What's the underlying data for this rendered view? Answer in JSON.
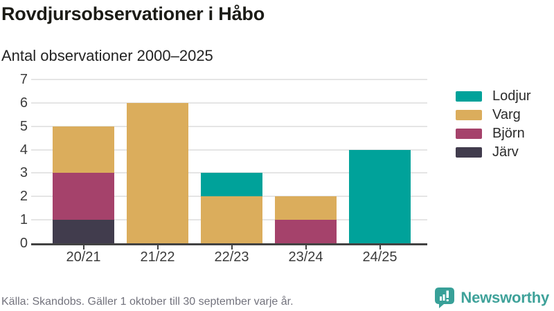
{
  "footer": {
    "source": "Källa: Skandobs. Gäller 1 oktober till 30 september varje år.",
    "brand": "Newsworthy"
  },
  "colors": {
    "lodjur_teal": "#00A29A",
    "varg_gold": "#DBAD5C",
    "bjorn_maroon": "#A5426B",
    "jarv_dark": "#413C4D",
    "brand_teal": "#3FA29A",
    "axis": "#424242",
    "gridline": "#E5E5E5"
  },
  "chart_data": {
    "type": "bar",
    "stacked": true,
    "title": "Rovdjursobservationer i Håbo",
    "subtitle": "Antal observationer 2000–2025",
    "categories": [
      "20/21",
      "21/22",
      "22/23",
      "23/24",
      "24/25"
    ],
    "series": [
      {
        "name": "Lodjur",
        "color": "#00A29A",
        "values": [
          0,
          0,
          1,
          0,
          4
        ]
      },
      {
        "name": "Varg",
        "color": "#DBAD5C",
        "values": [
          2,
          6,
          2,
          1,
          0
        ]
      },
      {
        "name": "Björn",
        "color": "#A5426B",
        "values": [
          2,
          0,
          0,
          1,
          0
        ]
      },
      {
        "name": "Järv",
        "color": "#413C4D",
        "values": [
          1,
          0,
          0,
          0,
          0
        ]
      }
    ],
    "totals_per_category": [
      5,
      6,
      3,
      2,
      4
    ],
    "stack_order_bottom_to_top": [
      "Järv",
      "Björn",
      "Varg",
      "Lodjur"
    ],
    "legend_order": [
      "Lodjur",
      "Varg",
      "Björn",
      "Järv"
    ],
    "legend_position": "right",
    "xlabel": "",
    "ylabel": "",
    "ylim": [
      0,
      7
    ],
    "yticks": [
      0,
      1,
      2,
      3,
      4,
      5,
      6,
      7
    ],
    "grid": true
  }
}
